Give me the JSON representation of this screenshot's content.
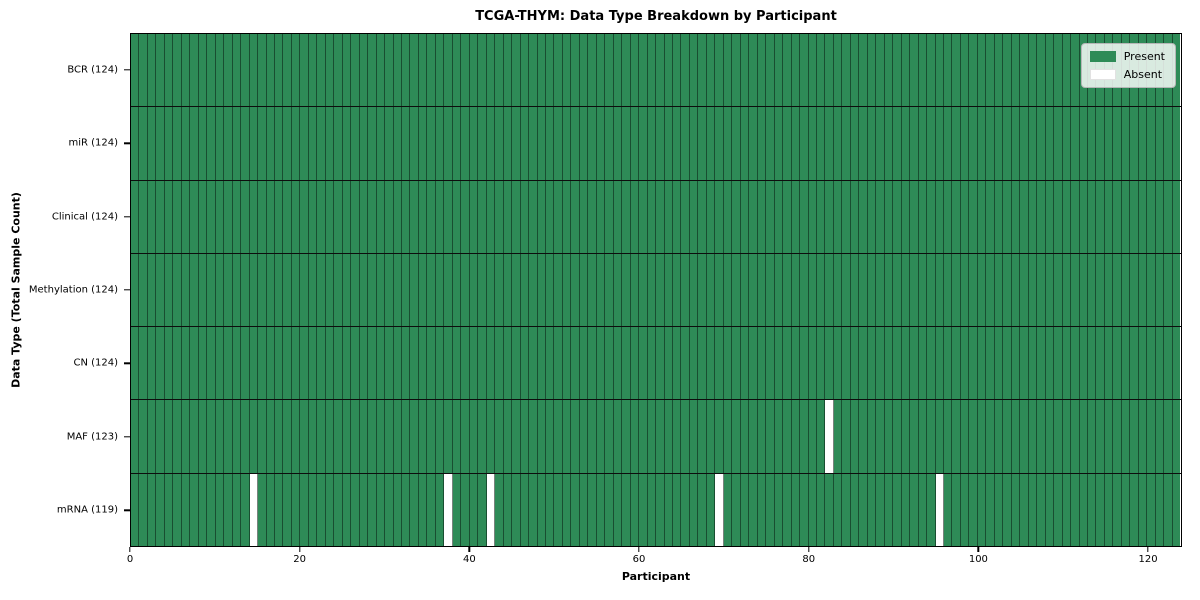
{
  "chart_data": {
    "type": "heatmap",
    "title": "TCGA-THYM: Data Type Breakdown by Participant",
    "xlabel": "Participant",
    "ylabel": "Data Type (Total Sample Count)",
    "n_participants": 124,
    "x_ticks": [
      0,
      20,
      40,
      60,
      80,
      100,
      120
    ],
    "xlim": [
      0,
      124
    ],
    "grid": "cell-edges",
    "legend_position": "upper-right",
    "rows": [
      {
        "label": "BCR (124)",
        "data_type": "BCR",
        "present_count": 124,
        "absent_participants": []
      },
      {
        "label": "miR (124)",
        "data_type": "miR",
        "present_count": 124,
        "absent_participants": []
      },
      {
        "label": "Clinical (124)",
        "data_type": "Clinical",
        "present_count": 124,
        "absent_participants": []
      },
      {
        "label": "Methylation (124)",
        "data_type": "Methylation",
        "present_count": 124,
        "absent_participants": []
      },
      {
        "label": "CN (124)",
        "data_type": "CN",
        "present_count": 124,
        "absent_participants": []
      },
      {
        "label": "MAF (123)",
        "data_type": "MAF",
        "present_count": 123,
        "absent_participants": [
          82
        ]
      },
      {
        "label": "mRNA (119)",
        "data_type": "mRNA",
        "present_count": 119,
        "absent_participants": [
          14,
          37,
          42,
          69,
          95
        ]
      }
    ],
    "legend": [
      {
        "label": "Present",
        "color": "#2e8b57"
      },
      {
        "label": "Absent",
        "color": "#ffffff"
      }
    ],
    "colors": {
      "present": "#2e8b57",
      "absent": "#ffffff",
      "cell_edge": "rgba(10,30,18,0.55)",
      "row_line": "#0d0d0d",
      "axes": "#000000"
    }
  }
}
